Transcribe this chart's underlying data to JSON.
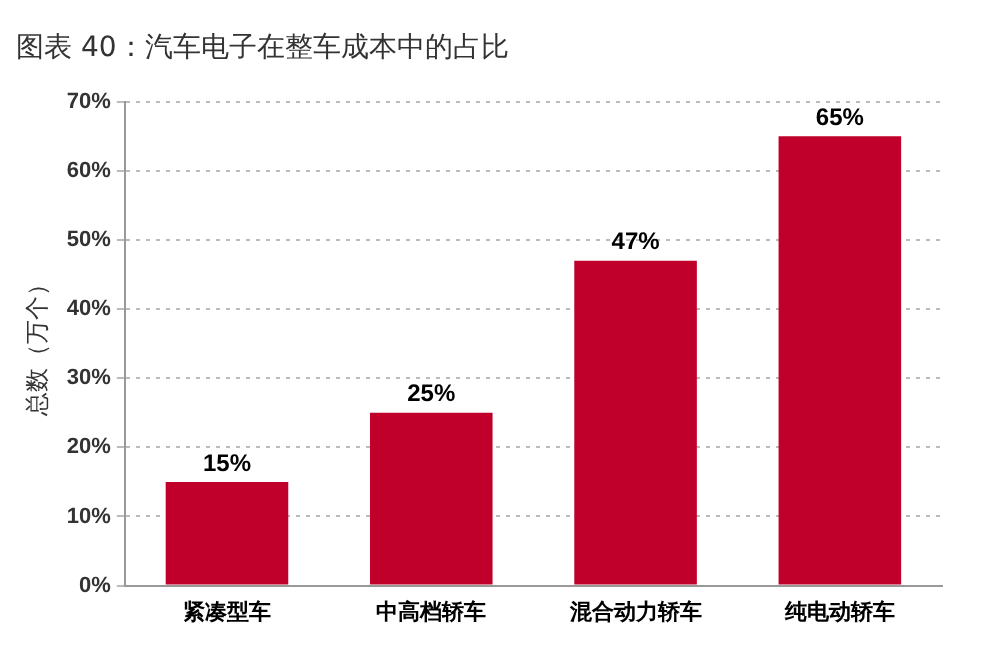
{
  "chart_data": {
    "type": "bar",
    "title": "图表 40：汽车电子在整车成本中的占比",
    "ylabel": "总数（万个）",
    "categories": [
      "紧凑型车",
      "中高档轿车",
      "混合动力轿车",
      "纯电动轿车"
    ],
    "values": [
      15,
      25,
      47,
      65
    ],
    "value_labels": [
      "15%",
      "25%",
      "47%",
      "65%"
    ],
    "color": "#c0002a",
    "ylim": [
      0,
      70
    ],
    "yticks": [
      {
        "value": 0,
        "label": "0%"
      },
      {
        "value": 10,
        "label": "10%"
      },
      {
        "value": 20,
        "label": "20%"
      },
      {
        "value": 30,
        "label": "30%"
      },
      {
        "value": 40,
        "label": "40%"
      },
      {
        "value": 50,
        "label": "50%"
      },
      {
        "value": 60,
        "label": "60%"
      },
      {
        "value": 70,
        "label": "70%"
      }
    ],
    "grid": "y"
  }
}
